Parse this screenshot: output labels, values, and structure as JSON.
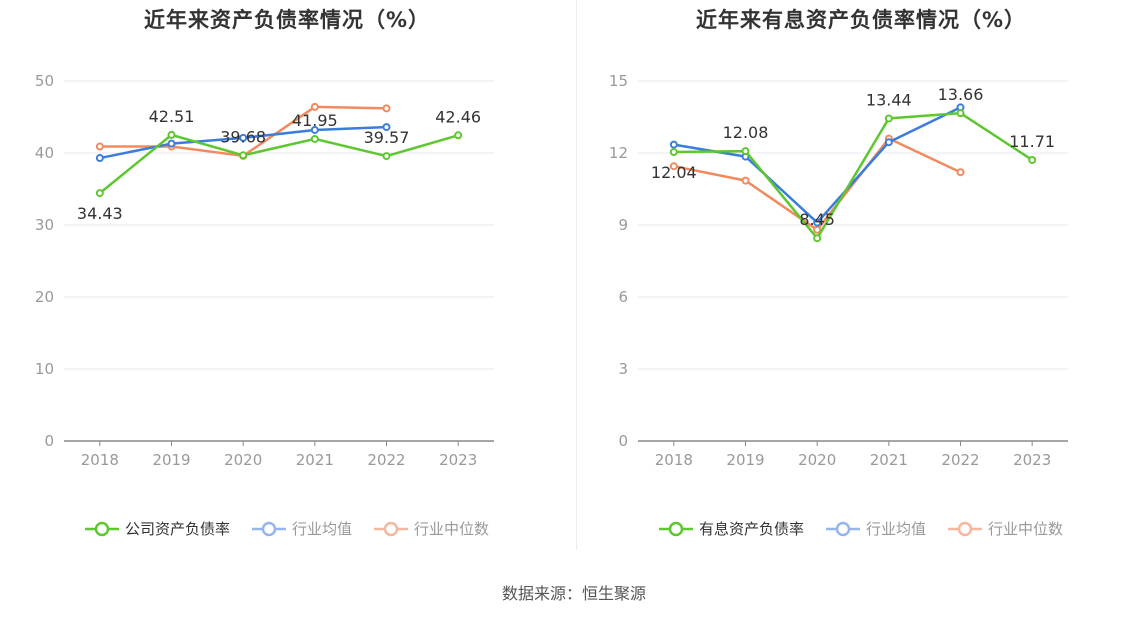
{
  "source": "数据来源：恒生聚源",
  "chart_data": [
    {
      "type": "line",
      "title": "近年来资产负债率情况（%）",
      "categories": [
        "2018",
        "2019",
        "2020",
        "2021",
        "2022",
        "2023"
      ],
      "ylim": [
        0,
        50
      ],
      "yticks": [
        0,
        10,
        20,
        30,
        40,
        50
      ],
      "series": [
        {
          "name": "公司资产负债率",
          "color": "#5cc72e",
          "values": [
            34.43,
            42.51,
            39.68,
            41.95,
            39.57,
            42.46
          ],
          "labels": [
            "34.43",
            "42.51",
            "39.68",
            "41.95",
            "39.57",
            "42.46"
          ]
        },
        {
          "name": "行业均值",
          "color": "#3b7ddd",
          "values": [
            39.3,
            41.3,
            42.1,
            43.2,
            43.6,
            null
          ]
        },
        {
          "name": "行业中位数",
          "color": "#f28a5e",
          "values": [
            40.9,
            40.9,
            39.6,
            46.4,
            46.2,
            null
          ]
        }
      ]
    },
    {
      "type": "line",
      "title": "近年来有息资产负债率情况（%）",
      "categories": [
        "2018",
        "2019",
        "2020",
        "2021",
        "2022",
        "2023"
      ],
      "ylim": [
        0,
        15
      ],
      "yticks": [
        0,
        3,
        6,
        9,
        12,
        15
      ],
      "series": [
        {
          "name": "有息资产负债率",
          "color": "#5cc72e",
          "values": [
            12.04,
            12.08,
            8.45,
            13.44,
            13.66,
            11.71
          ],
          "labels": [
            "12.04",
            "12.08",
            "8.45",
            "13.44",
            "13.66",
            "11.71"
          ]
        },
        {
          "name": "行业均值",
          "color": "#3b7ddd",
          "values": [
            12.35,
            11.85,
            9.1,
            12.45,
            13.9,
            null
          ]
        },
        {
          "name": "行业中位数",
          "color": "#f28a5e",
          "values": [
            11.45,
            10.85,
            8.8,
            12.6,
            11.2,
            null
          ]
        }
      ]
    }
  ]
}
